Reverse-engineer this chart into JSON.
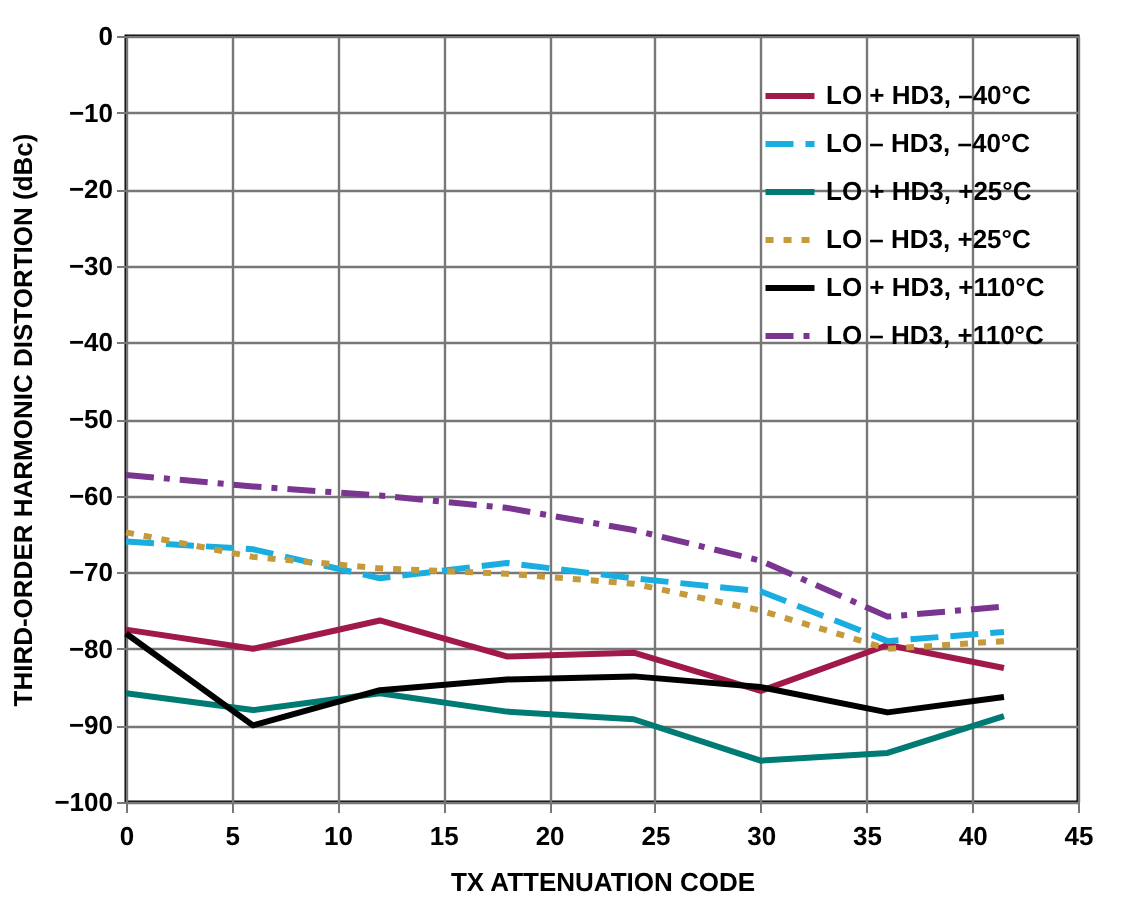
{
  "chart_data": {
    "type": "line",
    "xlabel": "TX ATTENUATION CODE",
    "ylabel": "THIRD-ORDER HARMONIC DISTORTION (dBc)",
    "x": [
      0,
      6,
      12,
      18,
      24,
      30,
      36,
      41.5
    ],
    "series": [
      {
        "name": "LO + HD3, –40°C",
        "color": "#a0194a",
        "line_style": "solid",
        "values": [
          -77.5,
          -80,
          -76.3,
          -81,
          -80.5,
          -85.5,
          -79.5,
          -82.5
        ]
      },
      {
        "name": "LO – HD3, –40°C",
        "color": "#1aaee0",
        "line_style": "dashed",
        "values": [
          -66,
          -67,
          -70.8,
          -68.8,
          -70.8,
          -72.5,
          -79,
          -77.8
        ]
      },
      {
        "name": "LO + HD3, +25°C",
        "color": "#007b74",
        "line_style": "solid",
        "values": [
          -85.8,
          -88,
          -85.8,
          -88.2,
          -89.2,
          -94.6,
          -93.6,
          -88.8
        ]
      },
      {
        "name": "LO – HD3, +25°C",
        "color": "#c49a3a",
        "line_style": "dotted",
        "values": [
          -64.8,
          -68,
          -69.5,
          -70.2,
          -71.5,
          -75,
          -80,
          -79
        ]
      },
      {
        "name": "LO + HD3, +110°C",
        "color": "#000000",
        "line_style": "solid",
        "values": [
          -78,
          -90,
          -85.4,
          -84,
          -83.6,
          -85,
          -88.3,
          -86.3
        ]
      },
      {
        "name": "LO – HD3, +110°C",
        "color": "#7a3590",
        "line_style": "dashdot",
        "values": [
          -57.3,
          -58.8,
          -60,
          -61.6,
          -64.5,
          -68.5,
          -75.8,
          -74.5
        ]
      }
    ],
    "xlim": [
      0,
      45
    ],
    "xticks": [
      0,
      5,
      10,
      15,
      20,
      25,
      30,
      35,
      40,
      45
    ],
    "ylim": [
      -100,
      0
    ],
    "yticks": [
      -100,
      -90,
      -80,
      -70,
      -60,
      -50,
      -40,
      -30,
      -20,
      -10,
      0
    ],
    "grid": true,
    "legend": "top right",
    "marker": "none"
  }
}
